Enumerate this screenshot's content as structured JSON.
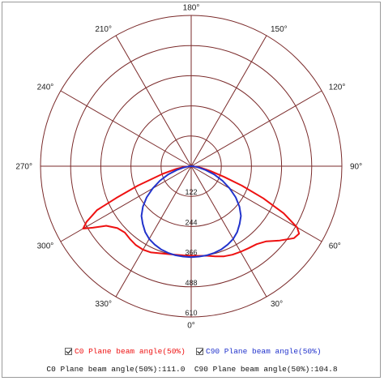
{
  "chart_data": {
    "type": "polar",
    "radial_ticks": [
      "122",
      "244",
      "366",
      "488",
      "610"
    ],
    "radial_max": 610,
    "angle_labels": [
      {
        "deg": 180,
        "text": "180°"
      },
      {
        "deg": 150,
        "text": "150°"
      },
      {
        "deg": 120,
        "text": "120°"
      },
      {
        "deg": 90,
        "text": "90°"
      },
      {
        "deg": 60,
        "text": "60°"
      },
      {
        "deg": 30,
        "text": "30°"
      },
      {
        "deg": 0,
        "text": "0°"
      },
      {
        "deg": -30,
        "text": "330°"
      },
      {
        "deg": -60,
        "text": "300°"
      },
      {
        "deg": -90,
        "text": "270°"
      },
      {
        "deg": -120,
        "text": "240°"
      },
      {
        "deg": -150,
        "text": "210°"
      }
    ],
    "grid_color": "#7a2a2a",
    "series": [
      {
        "name": "C0 Plane beam angle(50%)",
        "color": "#ee1111",
        "points": [
          [
            -90,
            0
          ],
          [
            -85,
            25
          ],
          [
            -80,
            60
          ],
          [
            -75,
            120
          ],
          [
            -70,
            230
          ],
          [
            -67,
            330
          ],
          [
            -65,
            420
          ],
          [
            -62,
            480
          ],
          [
            -60,
            505
          ],
          [
            -58,
            470
          ],
          [
            -55,
            420
          ],
          [
            -50,
            390
          ],
          [
            -45,
            380
          ],
          [
            -40,
            385
          ],
          [
            -35,
            390
          ],
          [
            -30,
            390
          ],
          [
            -25,
            385
          ],
          [
            -20,
            375
          ],
          [
            -15,
            368
          ],
          [
            -10,
            364
          ],
          [
            -5,
            362
          ],
          [
            0,
            362
          ],
          [
            5,
            364
          ],
          [
            10,
            368
          ],
          [
            15,
            378
          ],
          [
            20,
            388
          ],
          [
            25,
            395
          ],
          [
            30,
            400
          ],
          [
            35,
            405
          ],
          [
            40,
            412
          ],
          [
            45,
            430
          ],
          [
            50,
            468
          ],
          [
            55,
            508
          ],
          [
            58,
            515
          ],
          [
            60,
            495
          ],
          [
            63,
            420
          ],
          [
            66,
            320
          ],
          [
            69,
            220
          ],
          [
            72,
            140
          ],
          [
            76,
            80
          ],
          [
            80,
            45
          ],
          [
            85,
            18
          ],
          [
            90,
            0
          ]
        ]
      },
      {
        "name": "C90 Plane beam angle(50%)",
        "color": "#2233cc",
        "points": [
          [
            -90,
            0
          ],
          [
            -85,
            12
          ],
          [
            -80,
            30
          ],
          [
            -75,
            60
          ],
          [
            -70,
            100
          ],
          [
            -65,
            140
          ],
          [
            -60,
            180
          ],
          [
            -55,
            220
          ],
          [
            -50,
            255
          ],
          [
            -45,
            285
          ],
          [
            -40,
            305
          ],
          [
            -35,
            325
          ],
          [
            -30,
            340
          ],
          [
            -25,
            350
          ],
          [
            -20,
            358
          ],
          [
            -15,
            363
          ],
          [
            -10,
            366
          ],
          [
            -5,
            367
          ],
          [
            0,
            368
          ],
          [
            5,
            367
          ],
          [
            10,
            366
          ],
          [
            15,
            363
          ],
          [
            20,
            358
          ],
          [
            25,
            350
          ],
          [
            30,
            340
          ],
          [
            35,
            325
          ],
          [
            40,
            305
          ],
          [
            45,
            285
          ],
          [
            50,
            255
          ],
          [
            55,
            220
          ],
          [
            60,
            180
          ],
          [
            65,
            140
          ],
          [
            70,
            100
          ],
          [
            75,
            60
          ],
          [
            80,
            30
          ],
          [
            85,
            12
          ],
          [
            90,
            0
          ]
        ]
      }
    ]
  },
  "legend": {
    "c0_label": "C0 Plane beam angle(50%)",
    "c90_label": "C90 Plane beam angle(50%)"
  },
  "summary": {
    "text": "C0 Plane beam angle(50%):111.0  C90 Plane beam angle(50%):104.8"
  }
}
